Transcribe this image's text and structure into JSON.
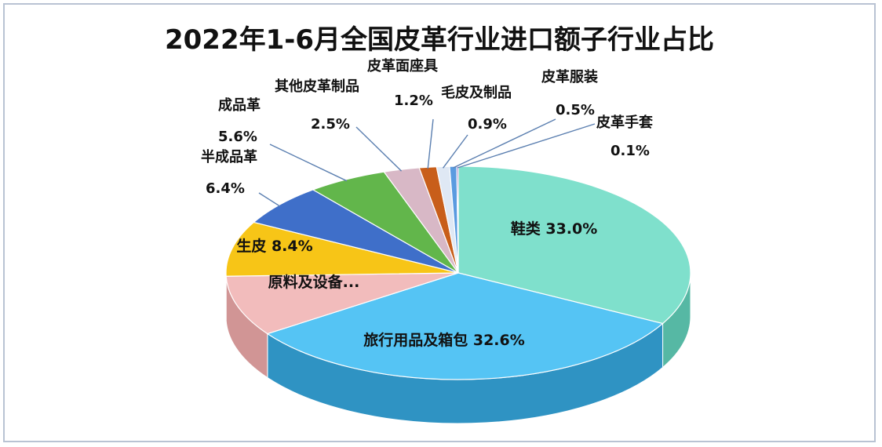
{
  "chart_data": {
    "type": "pie",
    "title": "2022年1-6月全国皮革行业进口额子行业占比",
    "slices": [
      {
        "label": "鞋类",
        "value": 33.0,
        "value_label": "33.0%",
        "color": "#7fe0cc",
        "side": "#56b8a4"
      },
      {
        "label": "旅行用品及箱包",
        "value": 32.6,
        "value_label": "32.6%",
        "color": "#55c4f4",
        "side": "#2f93c3"
      },
      {
        "label": "原料及设备...",
        "value": 9.2,
        "value_label": "",
        "color": "#f2bcbc",
        "side": "#d19595"
      },
      {
        "label": "生皮",
        "value": 8.4,
        "value_label": "8.4%",
        "color": "#f7c517",
        "side": "#c99a07"
      },
      {
        "label": "半成品革",
        "value": 6.4,
        "value_label": "6.4%",
        "color": "#3f6fc9",
        "side": "#2c4f95"
      },
      {
        "label": "成品革",
        "value": 5.6,
        "value_label": "5.6%",
        "color": "#62b64b",
        "side": "#458a34"
      },
      {
        "label": "其他皮革制品",
        "value": 2.5,
        "value_label": "2.5%",
        "color": "#d8b8c6",
        "side": "#ad8d9a"
      },
      {
        "label": "皮革面座具",
        "value": 1.2,
        "value_label": "1.2%",
        "color": "#c85e1a",
        "side": "#9a4512"
      },
      {
        "label": "毛皮及制品",
        "value": 0.9,
        "value_label": "0.9%",
        "color": "#dfe8f4",
        "side": "#b5c0d0"
      },
      {
        "label": "皮革服装",
        "value": 0.5,
        "value_label": "0.5%",
        "color": "#5a9be0",
        "side": "#3f78b6"
      },
      {
        "label": "皮革手套",
        "value": 0.1,
        "value_label": "0.1%",
        "color": "#6b2fa8",
        "side": "#4d1f7c"
      }
    ]
  }
}
